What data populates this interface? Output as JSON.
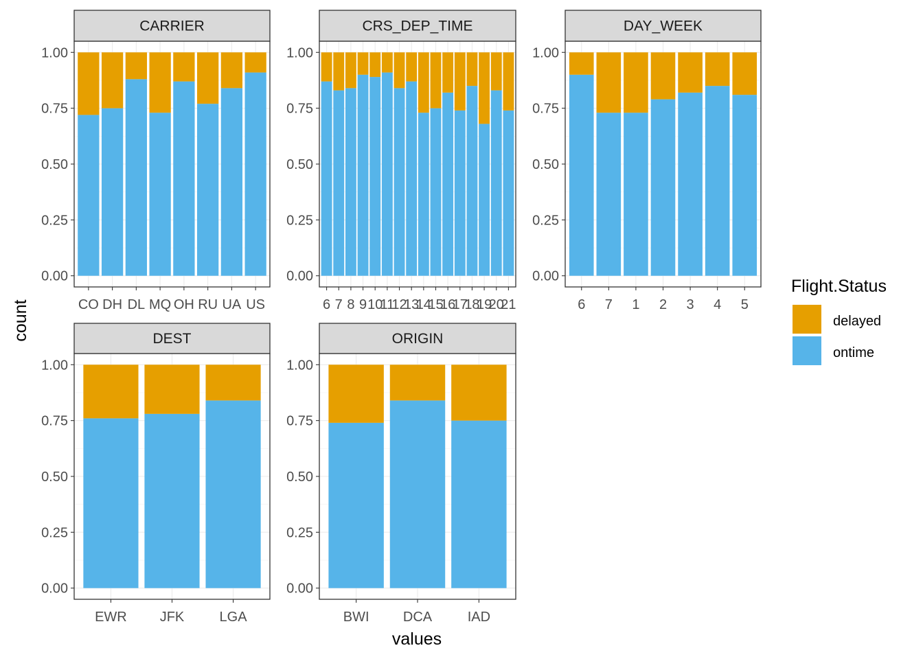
{
  "chart_data": {
    "type": "bar",
    "stacked": true,
    "xlabel": "values",
    "ylabel": "count",
    "ylim": [
      0,
      1
    ],
    "y_ticks": [
      "0.00",
      "0.25",
      "0.50",
      "0.75",
      "1.00"
    ],
    "grid": true,
    "legend": {
      "title": "Flight.Status",
      "position": "right",
      "entries": [
        "delayed",
        "ontime"
      ]
    },
    "colors": {
      "delayed": "#E69F00",
      "ontime": "#56B4E9"
    },
    "panels": [
      {
        "title": "CARRIER",
        "categories": [
          "CO",
          "DH",
          "DL",
          "MQ",
          "OH",
          "RU",
          "UA",
          "US"
        ],
        "series": [
          {
            "name": "ontime",
            "values": [
              0.72,
              0.75,
              0.88,
              0.73,
              0.87,
              0.77,
              0.84,
              0.91
            ]
          },
          {
            "name": "delayed",
            "values": [
              0.28,
              0.25,
              0.12,
              0.27,
              0.13,
              0.23,
              0.16,
              0.09
            ]
          }
        ]
      },
      {
        "title": "CRS_DEP_TIME",
        "categories": [
          "6",
          "7",
          "8",
          "9",
          "10",
          "11",
          "12",
          "13",
          "14",
          "15",
          "16",
          "17",
          "18",
          "19",
          "20",
          "21"
        ],
        "series": [
          {
            "name": "ontime",
            "values": [
              0.87,
              0.83,
              0.84,
              0.9,
              0.89,
              0.91,
              0.84,
              0.87,
              0.73,
              0.75,
              0.82,
              0.74,
              0.85,
              0.68,
              0.83,
              0.74
            ]
          },
          {
            "name": "delayed",
            "values": [
              0.13,
              0.17,
              0.16,
              0.1,
              0.11,
              0.09,
              0.16,
              0.13,
              0.27,
              0.25,
              0.18,
              0.26,
              0.15,
              0.32,
              0.17,
              0.26
            ]
          }
        ]
      },
      {
        "title": "DAY_WEEK",
        "categories": [
          "6",
          "7",
          "1",
          "2",
          "3",
          "4",
          "5"
        ],
        "series": [
          {
            "name": "ontime",
            "values": [
              0.9,
              0.73,
              0.73,
              0.79,
              0.82,
              0.85,
              0.81
            ]
          },
          {
            "name": "delayed",
            "values": [
              0.1,
              0.27,
              0.27,
              0.21,
              0.18,
              0.15,
              0.19
            ]
          }
        ]
      },
      {
        "title": "DEST",
        "categories": [
          "EWR",
          "JFK",
          "LGA"
        ],
        "series": [
          {
            "name": "ontime",
            "values": [
              0.76,
              0.78,
              0.84
            ]
          },
          {
            "name": "delayed",
            "values": [
              0.24,
              0.22,
              0.16
            ]
          }
        ]
      },
      {
        "title": "ORIGIN",
        "categories": [
          "BWI",
          "DCA",
          "IAD"
        ],
        "series": [
          {
            "name": "ontime",
            "values": [
              0.74,
              0.84,
              0.75
            ]
          },
          {
            "name": "delayed",
            "values": [
              0.26,
              0.16,
              0.25
            ]
          }
        ]
      }
    ]
  }
}
